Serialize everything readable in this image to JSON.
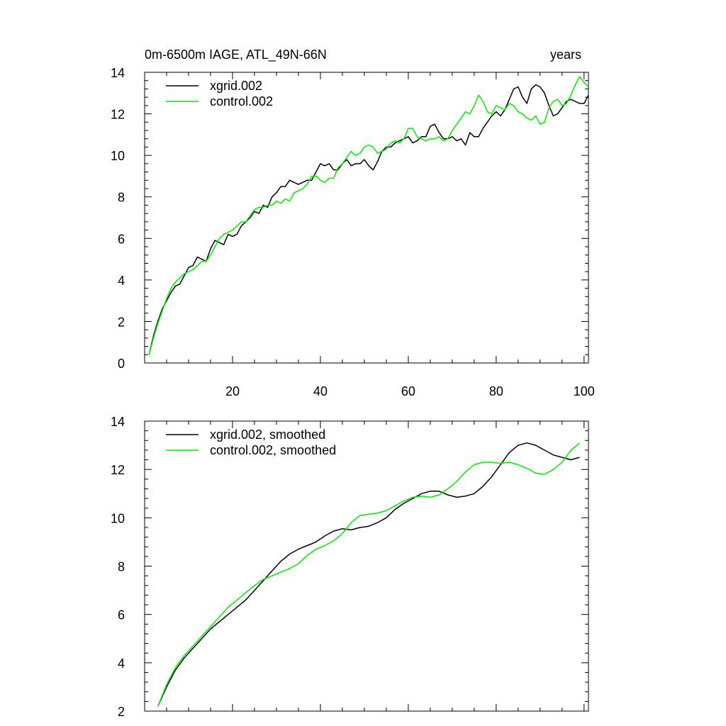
{
  "chart_data": [
    {
      "type": "line",
      "title": "0m-6500m IAGE, ATL_49N-66N",
      "title_right": "years",
      "xlim": [
        0,
        101
      ],
      "ylim": [
        0,
        14
      ],
      "x_ticks": [
        20,
        40,
        60,
        80,
        100
      ],
      "x_tick_labels": [
        "20",
        "40",
        "60",
        "80",
        "100"
      ],
      "y_ticks": [
        0,
        2,
        4,
        6,
        8,
        10,
        12,
        14
      ],
      "y_tick_labels": [
        "0",
        "2",
        "4",
        "6",
        "8",
        "10",
        "12",
        "14"
      ],
      "grid": false,
      "legend_position": "top-left",
      "x": [
        1,
        2,
        3,
        4,
        5,
        6,
        7,
        8,
        9,
        10,
        11,
        12,
        13,
        14,
        15,
        16,
        17,
        18,
        19,
        20,
        21,
        22,
        23,
        24,
        25,
        26,
        27,
        28,
        29,
        30,
        31,
        32,
        33,
        34,
        35,
        36,
        37,
        38,
        39,
        40,
        41,
        42,
        43,
        44,
        45,
        46,
        47,
        48,
        49,
        50,
        51,
        52,
        53,
        54,
        55,
        56,
        57,
        58,
        59,
        60,
        61,
        62,
        63,
        64,
        65,
        66,
        67,
        68,
        69,
        70,
        71,
        72,
        73,
        74,
        75,
        76,
        77,
        78,
        79,
        80,
        81,
        82,
        83,
        84,
        85,
        86,
        87,
        88,
        89,
        90,
        91,
        92,
        93,
        94,
        95,
        96,
        97,
        98,
        99,
        100,
        101
      ],
      "series": [
        {
          "name": "xgrid.002",
          "color": "#000000",
          "values": [
            0.4,
            1.3,
            2.0,
            2.6,
            3.0,
            3.4,
            3.7,
            3.8,
            4.2,
            4.6,
            4.7,
            5.1,
            5.0,
            4.9,
            5.5,
            5.9,
            5.8,
            5.7,
            6.2,
            6.1,
            6.2,
            6.6,
            6.8,
            7.0,
            7.3,
            7.2,
            7.6,
            7.5,
            8.0,
            8.2,
            8.5,
            8.5,
            8.8,
            8.7,
            8.6,
            8.7,
            8.8,
            8.8,
            9.2,
            9.6,
            9.5,
            9.6,
            9.3,
            9.3,
            9.6,
            9.8,
            9.5,
            9.6,
            9.6,
            9.8,
            9.5,
            9.3,
            9.7,
            10.2,
            10.4,
            10.4,
            10.6,
            10.7,
            10.8,
            10.9,
            10.6,
            10.7,
            10.9,
            10.9,
            11.4,
            11.5,
            11.1,
            10.8,
            10.8,
            10.9,
            10.7,
            10.8,
            10.5,
            11.1,
            10.9,
            10.9,
            11.3,
            11.6,
            11.9,
            12.1,
            11.9,
            12.2,
            12.7,
            13.2,
            13.3,
            12.8,
            12.5,
            13.2,
            13.4,
            13.3,
            13.0,
            12.4,
            11.9,
            12.0,
            12.3,
            12.6,
            12.7,
            12.6,
            12.5,
            12.5,
            12.9
          ]
        },
        {
          "name": "control.002",
          "color": "#00ee00",
          "values": [
            0.4,
            1.2,
            1.9,
            2.5,
            3.1,
            3.6,
            3.9,
            4.1,
            4.3,
            4.4,
            4.5,
            4.7,
            4.9,
            4.9,
            5.2,
            5.6,
            6.0,
            6.2,
            6.3,
            6.4,
            6.6,
            6.8,
            6.8,
            7.1,
            7.4,
            7.5,
            7.5,
            7.6,
            7.6,
            7.8,
            7.7,
            7.9,
            7.8,
            8.2,
            8.3,
            8.4,
            8.6,
            9.0,
            9.0,
            8.8,
            8.7,
            8.9,
            8.9,
            9.4,
            9.6,
            9.9,
            10.2,
            10.0,
            10.1,
            10.4,
            10.5,
            10.4,
            10.1,
            10.2,
            10.3,
            10.6,
            10.7,
            10.6,
            10.8,
            11.3,
            11.3,
            10.9,
            10.8,
            10.7,
            10.8,
            10.8,
            10.9,
            10.7,
            10.8,
            11.2,
            11.5,
            11.8,
            12.1,
            12.0,
            12.4,
            12.9,
            12.6,
            12.1,
            12.0,
            12.4,
            12.3,
            12.2,
            12.5,
            12.4,
            12.1,
            12.0,
            11.8,
            11.7,
            11.9,
            11.5,
            11.6,
            12.3,
            12.6,
            12.7,
            12.4,
            12.5,
            12.9,
            13.4,
            13.8,
            13.5,
            13.3
          ]
        }
      ]
    },
    {
      "type": "line",
      "xlim": [
        0,
        101
      ],
      "ylim": [
        2,
        14
      ],
      "x_ticks": [
        20,
        40,
        60,
        80,
        100
      ],
      "y_ticks": [
        2,
        4,
        6,
        8,
        10,
        12,
        14
      ],
      "y_tick_labels": [
        "2",
        "4",
        "6",
        "8",
        "10",
        "12",
        "14"
      ],
      "grid": false,
      "legend_position": "top-left",
      "x": [
        3,
        5,
        7,
        9,
        11,
        13,
        15,
        17,
        19,
        21,
        23,
        25,
        27,
        29,
        31,
        33,
        35,
        37,
        39,
        41,
        43,
        45,
        47,
        49,
        51,
        53,
        55,
        57,
        59,
        61,
        63,
        65,
        67,
        69,
        71,
        73,
        75,
        77,
        79,
        81,
        83,
        85,
        87,
        89,
        91,
        93,
        95,
        97,
        99
      ],
      "series": [
        {
          "name": "xgrid.002, smoothed",
          "color": "#000000",
          "values": [
            2.2,
            3.0,
            3.7,
            4.2,
            4.6,
            5.0,
            5.4,
            5.7,
            6.0,
            6.3,
            6.6,
            7.0,
            7.4,
            7.8,
            8.2,
            8.5,
            8.7,
            8.85,
            9.0,
            9.25,
            9.45,
            9.55,
            9.5,
            9.6,
            9.65,
            9.8,
            10.0,
            10.35,
            10.6,
            10.8,
            11.0,
            11.1,
            11.1,
            10.95,
            10.85,
            10.9,
            11.0,
            11.3,
            11.7,
            12.2,
            12.7,
            13.0,
            13.1,
            13.0,
            12.8,
            12.6,
            12.5,
            12.4,
            12.5
          ]
        },
        {
          "name": "control.002, smoothed",
          "color": "#00ee00",
          "values": [
            2.2,
            3.1,
            3.8,
            4.3,
            4.7,
            5.1,
            5.5,
            5.9,
            6.3,
            6.6,
            6.9,
            7.2,
            7.45,
            7.6,
            7.75,
            7.9,
            8.1,
            8.45,
            8.7,
            8.85,
            9.05,
            9.35,
            9.8,
            10.1,
            10.15,
            10.2,
            10.3,
            10.5,
            10.7,
            10.85,
            10.9,
            10.85,
            10.95,
            11.2,
            11.5,
            11.9,
            12.2,
            12.3,
            12.3,
            12.25,
            12.3,
            12.2,
            12.05,
            11.85,
            11.8,
            12.0,
            12.3,
            12.8,
            13.1
          ]
        }
      ]
    }
  ]
}
